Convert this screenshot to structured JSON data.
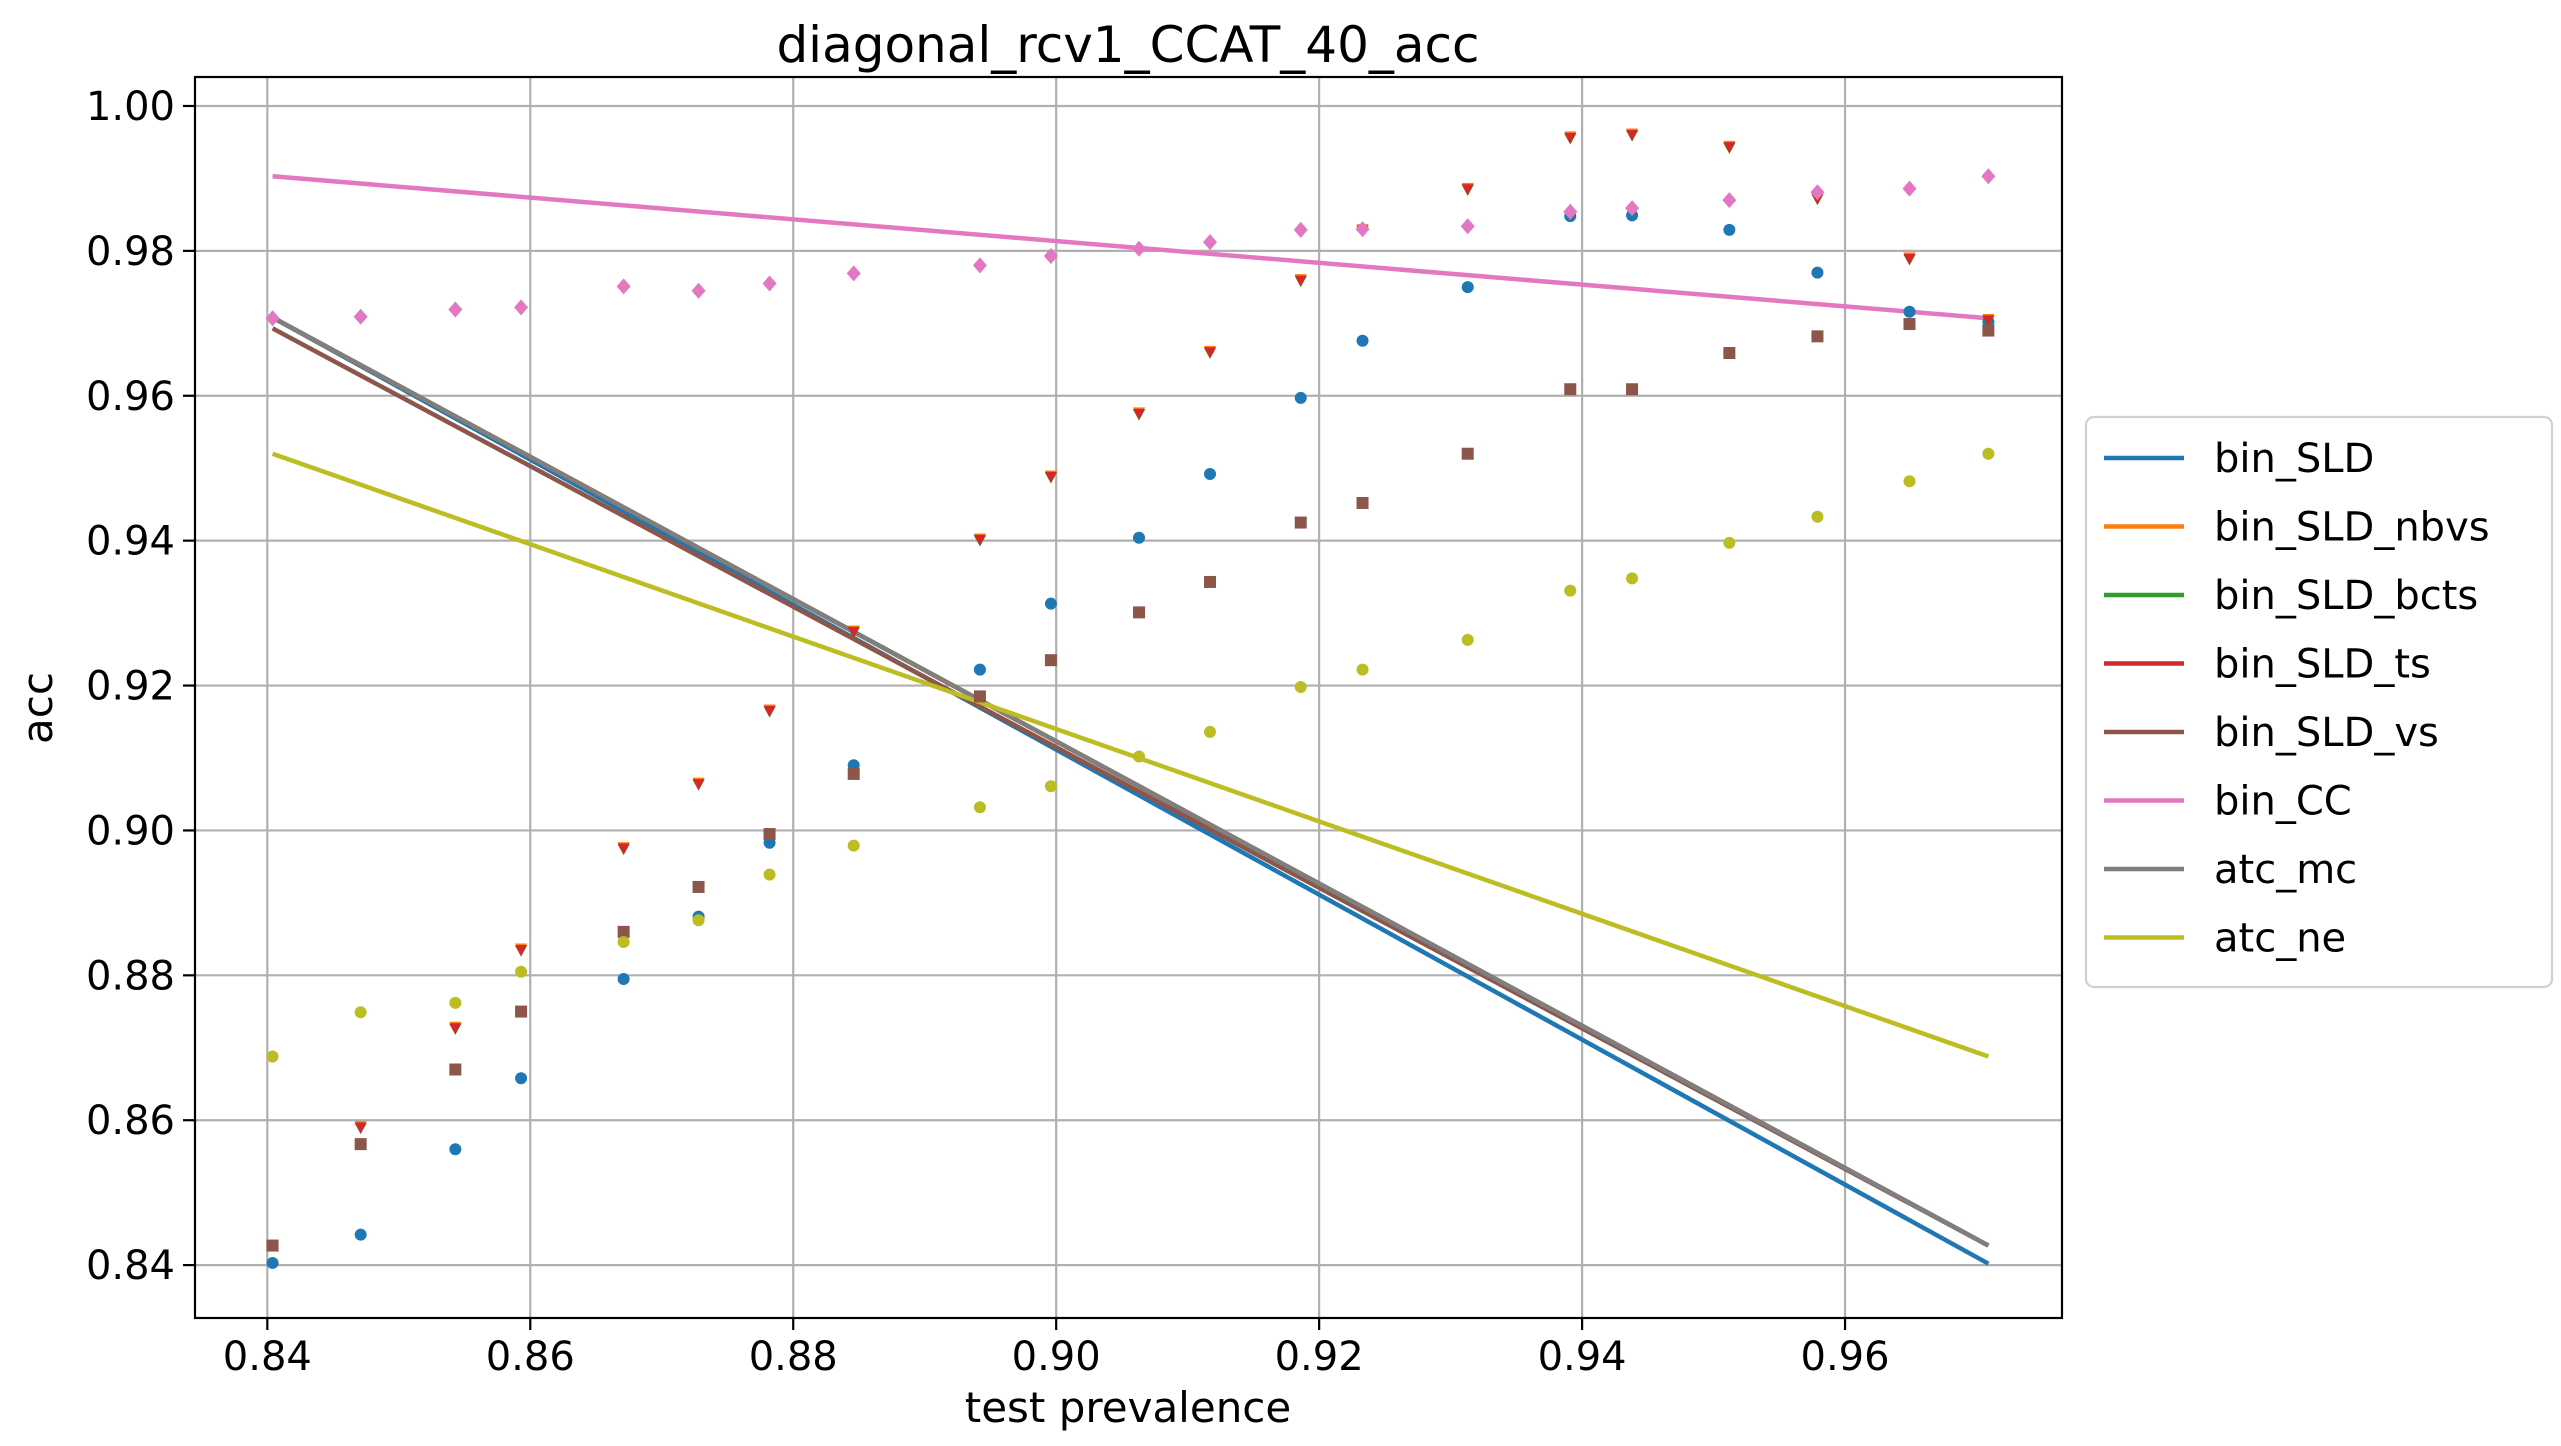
{
  "chart_data": {
    "type": "line+scatter",
    "title": "diagonal_rcv1_CCAT_40_acc",
    "xlabel": "test prevalence",
    "ylabel": "acc",
    "xlim": [
      0.8345,
      0.9765
    ],
    "ylim": [
      0.8327,
      1.004
    ],
    "xticks": [
      "0.84",
      "0.86",
      "0.88",
      "0.90",
      "0.92",
      "0.94",
      "0.96"
    ],
    "yticks": [
      "0.84",
      "0.86",
      "0.88",
      "0.90",
      "0.92",
      "0.94",
      "0.96",
      "0.98",
      "1.00"
    ],
    "grid": true,
    "legend_position": "right-outside",
    "x": [
      0.8404,
      0.8471,
      0.8543,
      0.8593,
      0.8671,
      0.8728,
      0.8782,
      0.8846,
      0.8942,
      0.8996,
      0.9063,
      0.9117,
      0.9186,
      0.9233,
      0.9313,
      0.9391,
      0.9438,
      0.9512,
      0.9579,
      0.9649,
      0.9709
    ],
    "series": [
      {
        "name": "bin_SLD",
        "color": "#1f77b4",
        "marker": "circle",
        "line": [
          [
            0.8404,
            0.9708
          ],
          [
            0.9709,
            0.8402
          ]
        ],
        "values": [
          0.8403,
          0.8442,
          0.856,
          0.8658,
          0.8795,
          0.8881,
          0.8983,
          0.909,
          0.9222,
          0.9313,
          0.9404,
          0.9492,
          0.9597,
          0.9676,
          0.975,
          0.9848,
          0.9849,
          0.9829,
          0.977,
          0.9716,
          0.9702
        ]
      },
      {
        "name": "bin_SLD_nbvs",
        "color": "#ff7f0e",
        "marker": "triangle",
        "line": [
          [
            0.8404,
            0.9708
          ],
          [
            0.9709,
            0.8427
          ]
        ],
        "values": [
          0.8427,
          0.8592,
          0.8729,
          0.8837,
          0.8977,
          0.9066,
          0.9167,
          0.9276,
          0.9403,
          0.949,
          0.9577,
          0.9662,
          0.9761,
          0.983,
          0.9887,
          0.9958,
          0.9962,
          0.9945,
          0.9874,
          0.9791,
          0.9706
        ]
      },
      {
        "name": "bin_SLD_bcts",
        "color": "#2ca02c",
        "marker": "triangle",
        "line": [
          [
            0.8404,
            0.9708
          ],
          [
            0.9709,
            0.8427
          ]
        ],
        "values": [
          0.8427,
          0.8589,
          0.8726,
          0.8834,
          0.8974,
          0.9063,
          0.9164,
          0.9273,
          0.94,
          0.9487,
          0.9574,
          0.9659,
          0.9758,
          0.9827,
          0.9884,
          0.9955,
          0.9959,
          0.9942,
          0.9871,
          0.9788,
          0.9703
        ]
      },
      {
        "name": "bin_SLD_ts",
        "color": "#d62728",
        "marker": "triangle",
        "line": [
          [
            0.8404,
            0.9708
          ],
          [
            0.9709,
            0.8427
          ]
        ],
        "values": [
          0.8427,
          0.859,
          0.8727,
          0.8835,
          0.8975,
          0.9064,
          0.9165,
          0.9274,
          0.9401,
          0.9488,
          0.9575,
          0.966,
          0.9759,
          0.9828,
          0.9885,
          0.9956,
          0.996,
          0.9943,
          0.9872,
          0.9789,
          0.9704
        ]
      },
      {
        "name": "bin_SLD_vs",
        "color": "#8c564b",
        "marker": "square",
        "line": [
          [
            0.8404,
            0.9693
          ],
          [
            0.9709,
            0.8427
          ]
        ],
        "values": [
          0.8427,
          0.8567,
          0.867,
          0.875,
          0.886,
          0.8922,
          0.8995,
          0.9078,
          0.9185,
          0.9235,
          0.9301,
          0.9343,
          0.9425,
          0.9452,
          0.952,
          0.9609,
          0.9609,
          0.9659,
          0.9682,
          0.9699,
          0.969
        ]
      },
      {
        "name": "bin_CC",
        "color": "#e377c2",
        "marker": "diamond",
        "line": [
          [
            0.8404,
            0.9903
          ],
          [
            0.9709,
            0.9707
          ]
        ],
        "values": [
          0.9707,
          0.9709,
          0.9719,
          0.9722,
          0.9751,
          0.9745,
          0.9755,
          0.9769,
          0.978,
          0.9793,
          0.9803,
          0.9812,
          0.9829,
          0.983,
          0.9834,
          0.9854,
          0.9859,
          0.987,
          0.9881,
          0.9886,
          0.9903
        ]
      },
      {
        "name": "atc_mc",
        "color": "#7f7f7f",
        "marker": "none",
        "line": [
          [
            0.8404,
            0.9708
          ],
          [
            0.9709,
            0.8427
          ]
        ],
        "values": []
      },
      {
        "name": "atc_ne",
        "color": "#bcbd22",
        "marker": "circle",
        "line": [
          [
            0.8404,
            0.952
          ],
          [
            0.9709,
            0.8688
          ]
        ],
        "values": [
          0.8688,
          0.8749,
          0.8762,
          0.8805,
          0.8846,
          0.8876,
          0.8939,
          0.8979,
          0.9032,
          0.9061,
          0.9102,
          0.9136,
          0.9198,
          0.9222,
          0.9263,
          0.9331,
          0.9348,
          0.9397,
          0.9433,
          0.9482,
          0.952
        ]
      }
    ]
  }
}
